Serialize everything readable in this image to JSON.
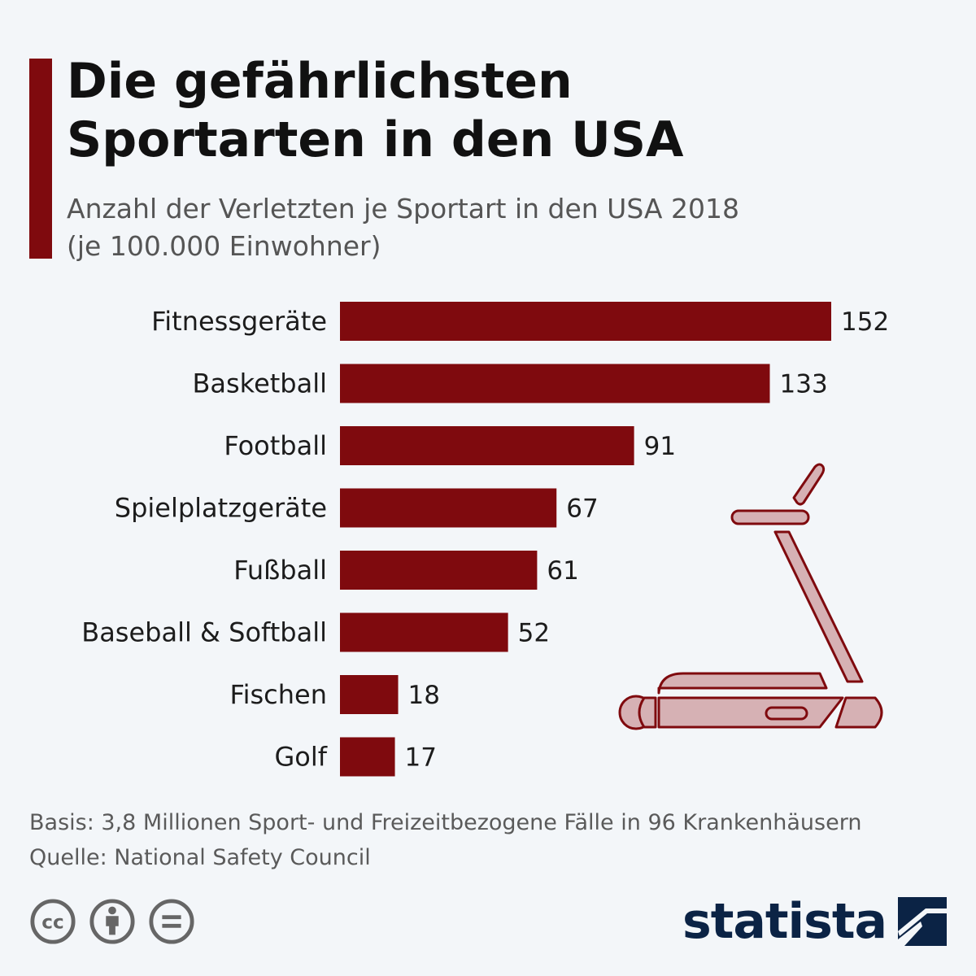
{
  "header": {
    "title_line1": "Die gefährlichsten",
    "title_line2": "Sportarten in den USA",
    "subtitle_line1": "Anzahl der Verletzten je Sportart in den USA 2018",
    "subtitle_line2": "(je 100.000 Einwohner)"
  },
  "chart_data": {
    "type": "bar",
    "orientation": "horizontal",
    "title": "Die gefährlichsten Sportarten in den USA",
    "subtitle": "Anzahl der Verletzten je Sportart in den USA 2018 (je 100.000 Einwohner)",
    "categories": [
      "Fitnessgeräte",
      "Basketball",
      "Football",
      "Spielplatzgeräte",
      "Fußball",
      "Baseball & Softball",
      "Fischen",
      "Golf"
    ],
    "values": [
      152,
      133,
      91,
      67,
      61,
      52,
      18,
      17
    ],
    "xlim": [
      0,
      152
    ],
    "grid": false,
    "bar_color": "#7f0a0e"
  },
  "footer": {
    "basis": "Basis: 3,8 Millionen Sport- und Freizeitbezogene Fälle in 96 Krankenhäusern",
    "source": "Quelle: National Safety Council"
  },
  "license_icons": [
    "cc-icon",
    "attribution-icon",
    "no-derivatives-icon"
  ],
  "brand": {
    "name": "statista",
    "logo_icon": "statista-logo-icon"
  },
  "illustration": {
    "icon": "treadmill-icon"
  },
  "colors": {
    "background": "#f3f6f9",
    "accent": "#7f0a0e",
    "illustration_fill": "#d6b1b4",
    "brand_navy": "#0b2345",
    "icon_gray": "#666666"
  }
}
